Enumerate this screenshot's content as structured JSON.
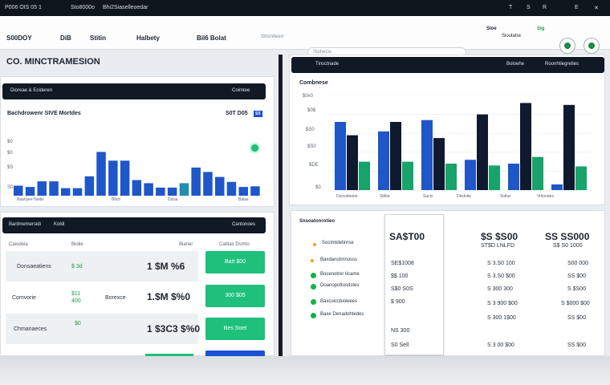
{
  "window": {
    "title": "P006 OIS 05 1",
    "tabs": [
      "Sto8000o",
      "Bhi2Siaselleoedar"
    ],
    "status": [
      "T",
      "S",
      "R",
      "E"
    ]
  },
  "menu": {
    "items": [
      "S00DOY",
      "DiB",
      "Stitin",
      "Halbety",
      "Bil6 Bolat"
    ],
    "search_label": "Sitsmiteerr",
    "search_placeholder": "Siphecie",
    "right_labels": [
      "Sloe",
      "Sioutatre",
      "Sig"
    ]
  },
  "left_title": "CO. MINCTRAMESION",
  "top_panel": {
    "header_left": "Dioreae & Ecideren",
    "header_right": "Coimtee",
    "subtitle": "Bachdrowenr SIVE Mortdes",
    "value": "S0T D05",
    "tag": "SS",
    "x_labels": [
      "Baanyee Noitis",
      "Bitch",
      "Dzisa",
      "Balas"
    ],
    "y_labels": [
      "$0",
      "$0",
      "$S",
      "S0"
    ]
  },
  "bottom_panel": {
    "header_left": "Bantmemersidi",
    "header_mid": "Koldi",
    "header_right": "Cantonoes",
    "col_headers": [
      "Caiodeia",
      "Biolie",
      "Blaner",
      "Catitas Dsmto"
    ],
    "rows": [
      {
        "name": "Donsaeatiens",
        "mid": "$ 3d",
        "value": "1 $M %6",
        "btn": "Batt $00"
      },
      {
        "name": "Comvorie",
        "mid": "$11 400",
        "sub": "Borexce",
        "value": "1.$M $%0",
        "btn": "300 $05"
      },
      {
        "name": "Chmanaeces",
        "mid": "$0",
        "value": "1 $3C3 $%0",
        "btn": "Bes Soet"
      },
      {
        "name": "",
        "mid": "",
        "value": "",
        "btn": ""
      }
    ]
  },
  "right_chart": {
    "header_left": "Tinsctnade",
    "header_right": [
      "Boloehe",
      "Roonhtiegreties"
    ],
    "title": "Combnese",
    "y_labels": [
      "$0x0",
      "$0$",
      "$S0",
      "$S0",
      "$DE",
      "$0"
    ],
    "x_labels": [
      "Donsideeter",
      "Sblite",
      "Sacts",
      "Dkidolte",
      "Sidlas",
      "Vrtlondes"
    ]
  },
  "right_table": {
    "title": "Snsoatonrotieo",
    "items": [
      "Socimtdetinrse",
      "Baxdanutmnosss",
      "Bocenotrer ticame",
      "Doanopottusdstes",
      "Baxcoiccbiowees",
      "Baxe Denadohtedes"
    ],
    "col1": {
      "head": "SA$T00",
      "vals": [
        "SE$1008",
        "$$ 100",
        "S$0 S0S",
        "$ 900",
        "NS 300",
        "S0 Sell"
      ]
    },
    "col2": {
      "head": "$S $S00",
      "sub": "ST$D LNLFD",
      "vals": [
        "S 3.S0 100",
        "S 3.S0 $00",
        "S 300 300",
        "S 3 900 $00",
        "S 300 1$00",
        "S 3 00 $00"
      ]
    },
    "col3": {
      "head": "SS SS000",
      "sub": "S$ S0 1000",
      "vals": [
        "S00 000",
        "SS $00",
        "S $S00",
        "S $000 $00",
        "SS $00",
        "SS $00"
      ]
    }
  },
  "colors": {
    "accent_green": "#1ec07a",
    "accent_blue": "#1a4fd1",
    "dark": "#111925"
  },
  "chart_data": [
    {
      "type": "bar",
      "series": [
        {
          "values": [
            16,
            14,
            23,
            23,
            12,
            12,
            31,
            70,
            56,
            56,
            25,
            20,
            13,
            13,
            20,
            45,
            38,
            30,
            22,
            14,
            15
          ]
        }
      ],
      "ylim": [
        0,
        100
      ]
    },
    {
      "type": "bar",
      "series": [
        {
          "values": [
            72,
            62,
            74,
            32,
            28,
            6
          ]
        },
        {
          "values": [
            58,
            72,
            55,
            80,
            92,
            90
          ]
        },
        {
          "values": [
            30,
            30,
            28,
            26,
            35,
            25
          ]
        }
      ],
      "ylim": [
        0,
        100
      ]
    }
  ]
}
